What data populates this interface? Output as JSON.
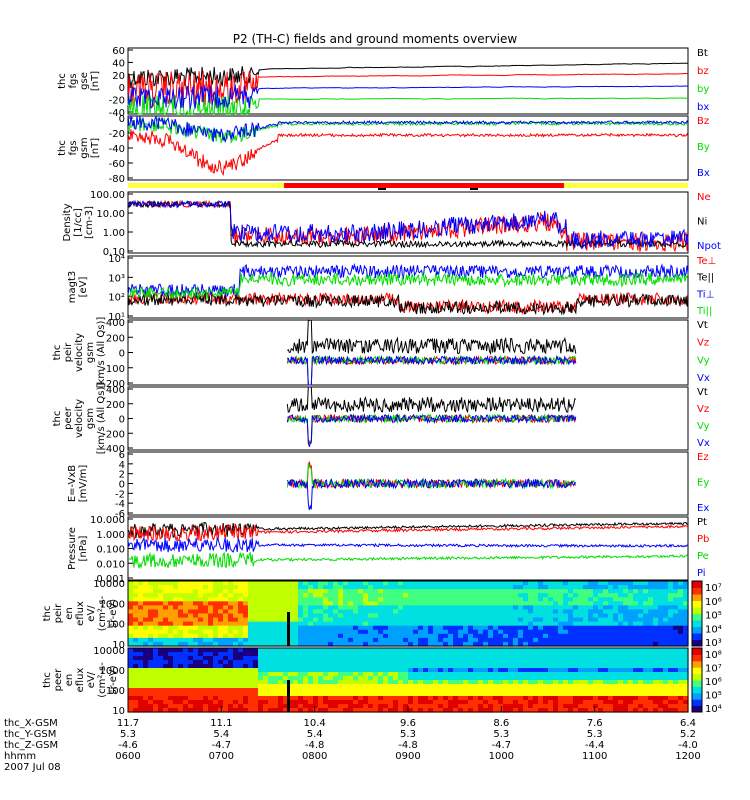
{
  "title": "P2 (TH-C) fields and ground moments overview",
  "colors": {
    "black": "#000000",
    "red": "#ff0000",
    "green": "#00dd00",
    "blue": "#0000ff",
    "yellow": "#ffff40"
  },
  "chart_data": {
    "type": "line",
    "title": "P2 (TH-C) fields and ground moments overview",
    "x_range": [
      "0600",
      "1200"
    ],
    "x_tick_labels": [
      "0600",
      "0700",
      "0800",
      "0900",
      "1000",
      "1100",
      "1200"
    ],
    "x_axis_label": "hhmm",
    "date_label": "2007 Jul 08",
    "ephemeris": [
      {
        "name": "thc_X-GSM",
        "values": [
          "11.7",
          "11.1",
          "10.4",
          "9.6",
          "8.6",
          "7.6",
          "6.4"
        ]
      },
      {
        "name": "thc_Y-GSM",
        "values": [
          "5.3",
          "5.4",
          "5.4",
          "5.3",
          "5.3",
          "5.3",
          "5.2"
        ]
      },
      {
        "name": "thc_Z-GSM",
        "values": [
          "-4.6",
          "-4.7",
          "-4.8",
          "-4.8",
          "-4.7",
          "-4.4",
          "-4.0"
        ]
      }
    ],
    "panels": [
      {
        "id": "fgs_gse",
        "ylabel": [
          "thc",
          "fgs",
          "gse",
          "[nT]"
        ],
        "yticks": [
          "60",
          "40",
          "20",
          "0",
          "-20",
          "-40"
        ],
        "ylim": [
          -40,
          60
        ],
        "series": [
          {
            "name": "Bt",
            "color": "#000000"
          },
          {
            "name": "bz",
            "color": "#ff0000"
          },
          {
            "name": "by",
            "color": "#00dd00"
          },
          {
            "name": "bx",
            "color": "#0000ff"
          }
        ]
      },
      {
        "id": "fgs_gsm",
        "ylabel": [
          "thc",
          "fgs",
          "gsm",
          "[nT]"
        ],
        "yticks": [
          "0",
          "-20",
          "-40",
          "-60",
          "-80"
        ],
        "ylim": [
          -80,
          0
        ],
        "series": [
          {
            "name": "Bz",
            "color": "#ff0000"
          },
          {
            "name": "By",
            "color": "#00dd00"
          },
          {
            "name": "Bx",
            "color": "#0000ff"
          }
        ]
      },
      {
        "id": "density",
        "ylabel": [
          "Density",
          "[1/cc]",
          "[cm-3]"
        ],
        "yticks": [
          "100.00",
          "10.00",
          "1.00",
          "0.10"
        ],
        "ylim": [
          0.1,
          100
        ],
        "log": true,
        "series": [
          {
            "name": "Ne",
            "color": "#ff0000"
          },
          {
            "name": "Ni",
            "color": "#000000"
          },
          {
            "name": "Npot",
            "color": "#0000ff"
          }
        ]
      },
      {
        "id": "temperature",
        "ylabel": [
          "magt3",
          "[eV]"
        ],
        "yticks": [
          "10⁴",
          "10³",
          "10²",
          "10¹"
        ],
        "ylim": [
          10,
          10000
        ],
        "log": true,
        "series": [
          {
            "name": "Te⊥",
            "color": "#ff0000"
          },
          {
            "name": "Te||",
            "color": "#000000"
          },
          {
            "name": "Ti⊥",
            "color": "#0000ff"
          },
          {
            "name": "Ti||",
            "color": "#00dd00"
          }
        ]
      },
      {
        "id": "peir_velocity",
        "ylabel": [
          "thc",
          "peir",
          "velocity",
          "gsm",
          "[km/s (All Qs)]"
        ],
        "yticks": [
          "400",
          "200",
          "0",
          "-100",
          "-200"
        ],
        "ylim": [
          -200,
          400
        ],
        "series": [
          {
            "name": "Vt",
            "color": "#000000"
          },
          {
            "name": "Vz",
            "color": "#ff0000"
          },
          {
            "name": "Vy",
            "color": "#00dd00"
          },
          {
            "name": "Vx",
            "color": "#0000ff"
          }
        ]
      },
      {
        "id": "peer_velocity",
        "ylabel": [
          "thc",
          "peer",
          "velocity",
          "gsm",
          "[km/s (All Qs)]"
        ],
        "yticks": [
          "400",
          "200",
          "0",
          "-200",
          "-400"
        ],
        "ylim": [
          -400,
          400
        ],
        "series": [
          {
            "name": "Vt",
            "color": "#000000"
          },
          {
            "name": "Vz",
            "color": "#ff0000"
          },
          {
            "name": "Vy",
            "color": "#00dd00"
          },
          {
            "name": "Vx",
            "color": "#0000ff"
          }
        ]
      },
      {
        "id": "efield",
        "ylabel": [
          "E=-VxB",
          "[mV/m]"
        ],
        "yticks": [
          "6",
          "4",
          "2",
          "0",
          "-2",
          "-4",
          "-6"
        ],
        "ylim": [
          -6,
          6
        ],
        "series": [
          {
            "name": "Ez",
            "color": "#ff0000"
          },
          {
            "name": "Ey",
            "color": "#00dd00"
          },
          {
            "name": "Ex",
            "color": "#0000ff"
          }
        ]
      },
      {
        "id": "pressure",
        "ylabel": [
          "Pressure",
          "[nPa]"
        ],
        "yticks": [
          "10.000",
          "1.000",
          "0.100",
          "0.010",
          "0.001"
        ],
        "ylim": [
          0.001,
          10
        ],
        "log": true,
        "series": [
          {
            "name": "Pt",
            "color": "#000000"
          },
          {
            "name": "Pb",
            "color": "#ff0000"
          },
          {
            "name": "Pe",
            "color": "#00dd00"
          },
          {
            "name": "Pi",
            "color": "#0000ff"
          }
        ]
      },
      {
        "id": "peir_eflux",
        "type": "heatmap",
        "ylabel": [
          "thc",
          "peir",
          "en",
          "eflux",
          "eV/",
          "(cm²-s-",
          "sr-eV)"
        ],
        "yticks": [
          "10000",
          "1000",
          "100",
          "10"
        ],
        "colorbar_ticks": [
          "10⁷",
          "10⁶",
          "10⁵",
          "10⁴",
          "10³"
        ]
      },
      {
        "id": "peer_eflux",
        "type": "heatmap",
        "ylabel": [
          "thc",
          "peer",
          "en",
          "eflux",
          "eV/",
          "(cm²-s-",
          "sr-eV)"
        ],
        "yticks": [
          "10000",
          "1000",
          "100",
          "10"
        ],
        "colorbar_ticks": [
          "10⁸",
          "10⁷",
          "10⁶",
          "10⁵",
          "10⁴"
        ]
      }
    ]
  }
}
